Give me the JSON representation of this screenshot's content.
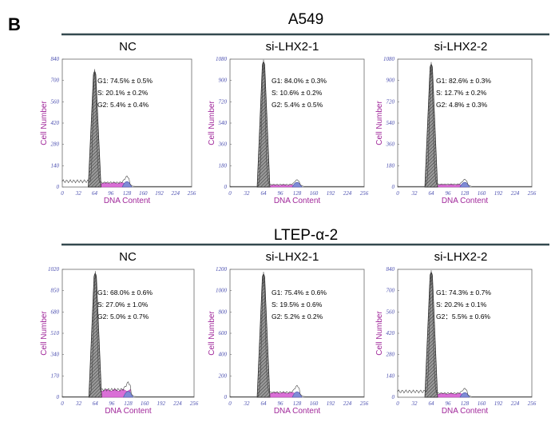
{
  "figure": {
    "panel_label": "B",
    "groups": [
      {
        "title": "A549",
        "samples": [
          {
            "title": "NC",
            "stats": [
              "G1: 74.5% ± 0.5%",
              "S: 20.1% ± 0.2%",
              "G2: 5.4% ± 0.4%"
            ]
          },
          {
            "title": "si-LHX2-1",
            "stats": [
              "G1: 84.0% ± 0.3%",
              "S: 10.6% ± 0.2%",
              "G2: 5.4% ± 0.5%"
            ]
          },
          {
            "title": "si-LHX2-2",
            "stats": [
              "G1: 82.6% ± 0.3%",
              "S: 12.7% ± 0.2%",
              "G2: 4.8% ± 0.3%"
            ]
          }
        ]
      },
      {
        "title": "LTEP-α-2",
        "samples": [
          {
            "title": "NC",
            "stats": [
              "G1: 68.0% ± 0.6%",
              "S: 27.0% ± 1.0%",
              "G2: 5.0% ± 0.7%"
            ]
          },
          {
            "title": "si-LHX2-1",
            "stats": [
              "G1: 75.4% ± 0.6%",
              "S: 19.5% ± 0.6%",
              "G2: 5.2% ± 0.2%"
            ]
          },
          {
            "title": "si-LHX2-2",
            "stats": [
              "G1: 74.3% ± 0.7%",
              "S: 20.2% ± 0.1%",
              "G2：5.5% ± 0.6%"
            ]
          }
        ]
      }
    ]
  },
  "chart_data": [
    {
      "type": "area",
      "group": "A549",
      "sample": "NC",
      "xlabel": "DNA Content",
      "ylabel": "Cell Number",
      "x_ticks": [
        "0",
        "32",
        "64",
        "96",
        "128",
        "160",
        "192",
        "224",
        "256"
      ],
      "y_ticks": [
        "0",
        "140",
        "280",
        "420",
        "560",
        "700",
        "840"
      ],
      "xlim": [
        0,
        256
      ],
      "ylim": [
        0,
        840
      ],
      "g1_peak": 64,
      "g1_height": 770,
      "g2_peak": 128,
      "g2_height": 40,
      "s_level": 25,
      "debris": true
    },
    {
      "type": "area",
      "group": "A549",
      "sample": "si-LHX2-1",
      "xlabel": "DNA Content",
      "ylabel": "Cell Number",
      "x_ticks": [
        "0",
        "32",
        "64",
        "96",
        "128",
        "160",
        "192",
        "224",
        "256"
      ],
      "y_ticks": [
        "0",
        "180",
        "360",
        "540",
        "720",
        "900",
        "1080"
      ],
      "xlim": [
        0,
        256
      ],
      "ylim": [
        0,
        1080
      ],
      "g1_peak": 64,
      "g1_height": 1070,
      "g2_peak": 128,
      "g2_height": 40,
      "s_level": 15,
      "debris": false
    },
    {
      "type": "area",
      "group": "A549",
      "sample": "si-LHX2-2",
      "xlabel": "DNA Content",
      "ylabel": "Cell Number",
      "x_ticks": [
        "0",
        "32",
        "64",
        "96",
        "128",
        "160",
        "192",
        "224",
        "256"
      ],
      "y_ticks": [
        "0",
        "180",
        "360",
        "540",
        "720",
        "900",
        "1080"
      ],
      "xlim": [
        0,
        256
      ],
      "ylim": [
        0,
        1080
      ],
      "g1_peak": 64,
      "g1_height": 1050,
      "g2_peak": 128,
      "g2_height": 40,
      "s_level": 18,
      "debris": false
    },
    {
      "type": "area",
      "group": "LTEP-α-2",
      "sample": "NC",
      "xlabel": "DNA Content",
      "ylabel": "Cell Number",
      "x_ticks": [
        "0",
        "32",
        "64",
        "96",
        "128",
        "160",
        "192",
        "224",
        "256"
      ],
      "y_ticks": [
        "0",
        "170",
        "340",
        "510",
        "680",
        "850",
        "1020"
      ],
      "xlim": [
        0,
        256
      ],
      "ylim": [
        0,
        1020
      ],
      "g1_peak": 64,
      "g1_height": 1000,
      "g2_peak": 128,
      "g2_height": 55,
      "s_level": 55,
      "debris": false
    },
    {
      "type": "area",
      "group": "LTEP-α-2",
      "sample": "si-LHX2-1",
      "xlabel": "DNA Content",
      "ylabel": "Cell Number",
      "x_ticks": [
        "0",
        "32",
        "64",
        "96",
        "128",
        "160",
        "192",
        "224",
        "256"
      ],
      "y_ticks": [
        "0",
        "200",
        "400",
        "600",
        "800",
        "1000",
        "1200"
      ],
      "xlim": [
        0,
        256
      ],
      "ylim": [
        0,
        1200
      ],
      "g1_peak": 64,
      "g1_height": 1170,
      "g2_peak": 128,
      "g2_height": 60,
      "s_level": 40,
      "debris": false
    },
    {
      "type": "area",
      "group": "LTEP-α-2",
      "sample": "si-LHX2-2",
      "xlabel": "DNA Content",
      "ylabel": "Cell Number",
      "x_ticks": [
        "0",
        "32",
        "64",
        "96",
        "128",
        "160",
        "192",
        "224",
        "256"
      ],
      "y_ticks": [
        "0",
        "140",
        "280",
        "420",
        "560",
        "700",
        "840"
      ],
      "xlim": [
        0,
        256
      ],
      "ylim": [
        0,
        840
      ],
      "g1_peak": 64,
      "g1_height": 830,
      "g2_peak": 128,
      "g2_height": 30,
      "s_level": 22,
      "debris": true
    }
  ]
}
